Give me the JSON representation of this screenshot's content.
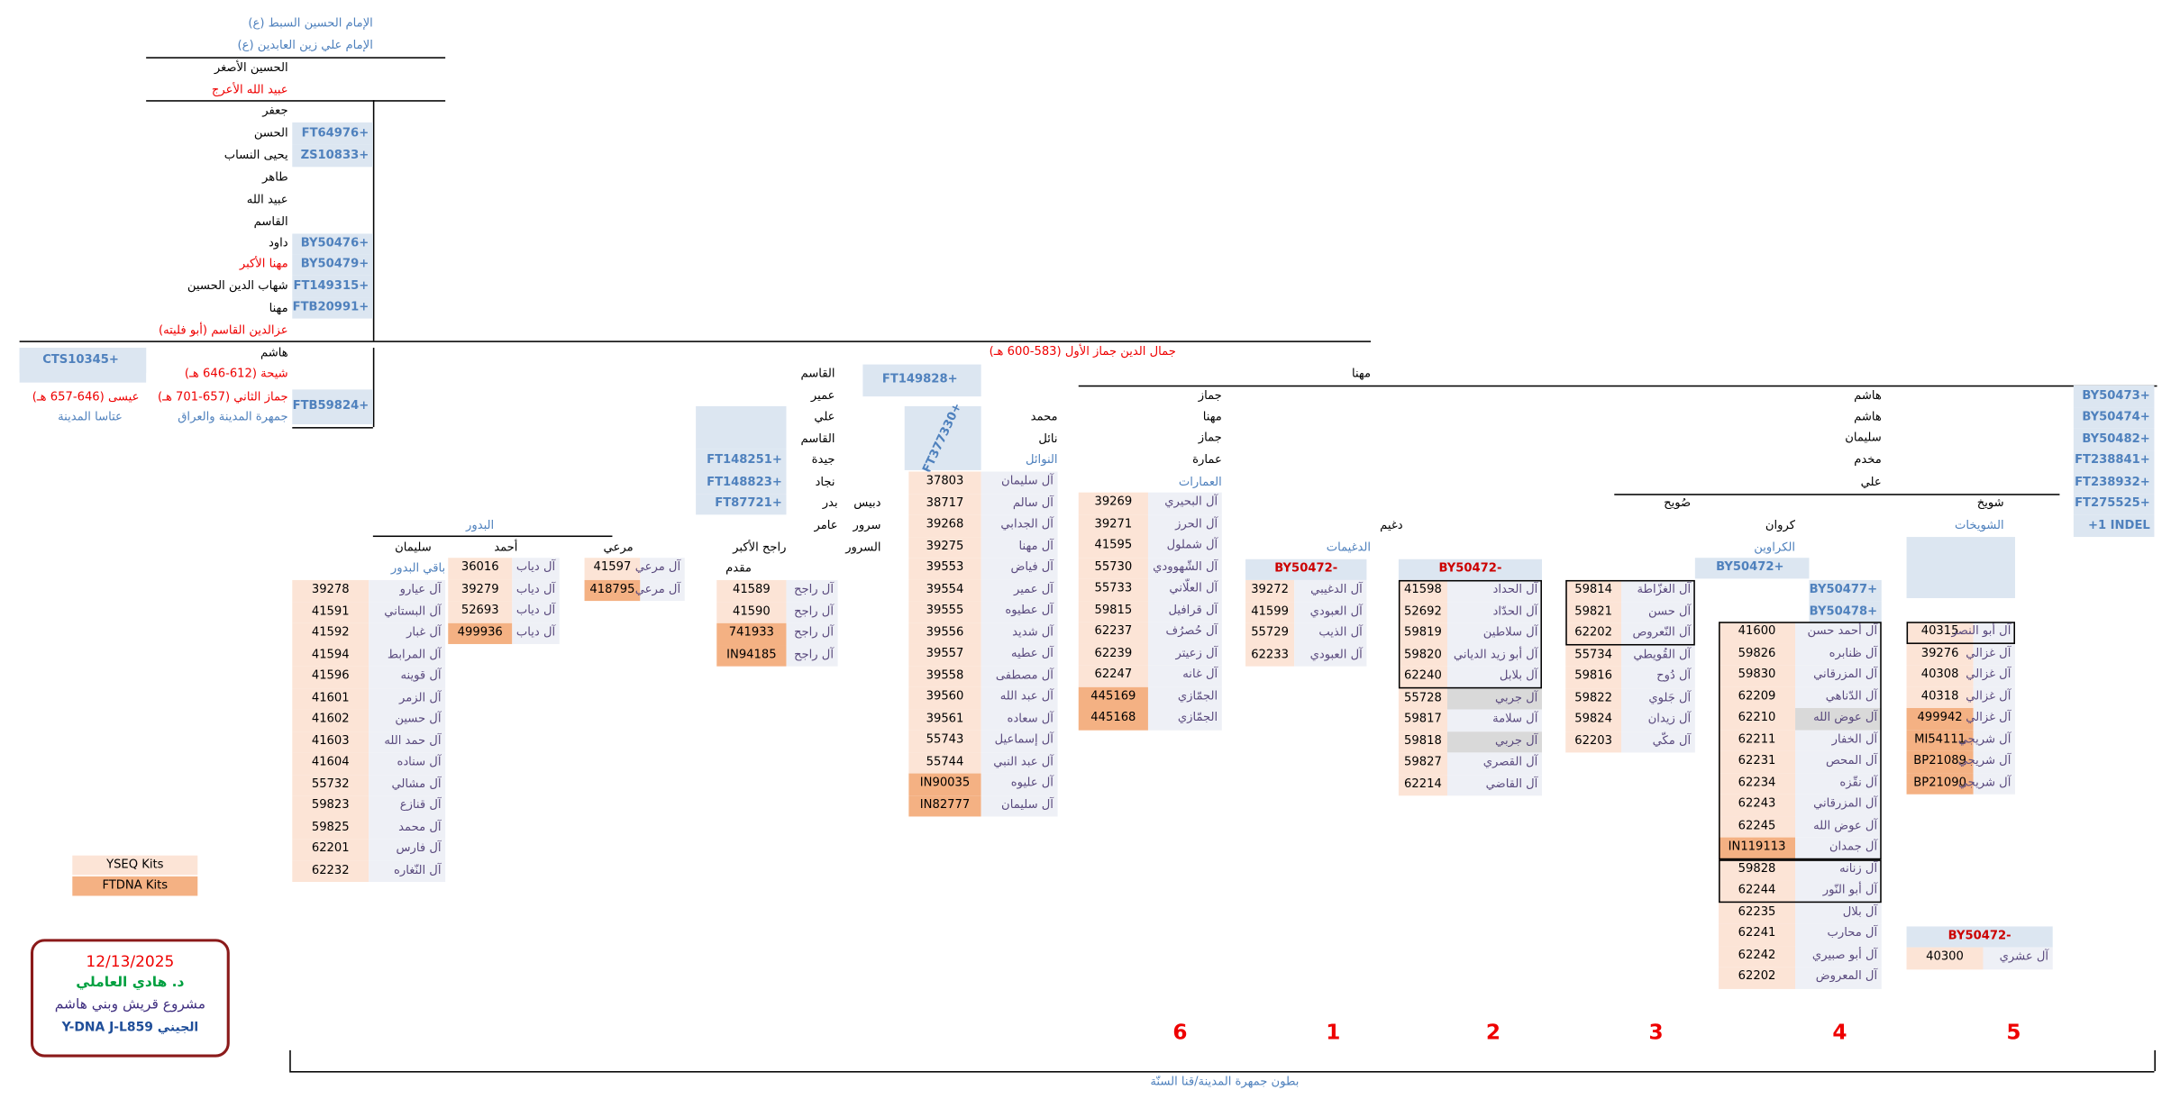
{
  "labels": [
    "الإمام الحسين السبط (ع)",
    "الإمام علي زين العابدين (ع)",
    "الحسين الأصغر",
    "عبيد الله الأعرج",
    "جعفر",
    "الحسن",
    "يحيى النساب",
    "طاهر",
    "عبيد الله",
    "القاسم",
    "داود",
    "مهنا الأكبر",
    "شهاب الدين الحسين",
    "مهنا",
    "عزالدين القاسم (أبو فليته)",
    "هاشم",
    "شيحة (612-646 هـ)",
    "جماز الثاني (657-701 هـ)",
    "جمهرة المدينة والعراق",
    "عيسى (646-657 هـ)",
    "عتاسا المدينة",
    "جمال الدين جماز الأول (583-600 هـ)",
    "القاسم",
    "عمير",
    "مهنا",
    "جماز",
    "مهنا",
    "جماز",
    "عمارة",
    "العمارات",
    "محمد",
    "نائل",
    "النوائل",
    "علي",
    "القاسم",
    "جيدة",
    "نجاد",
    "دبيس",
    "بدر",
    "سرور",
    "عامر",
    "السرور",
    "راجح الأكبر",
    "مقدم",
    "مرعي",
    "البدور",
    "أحمد",
    "سليمان",
    "هاشم",
    "هاشم",
    "سليمان",
    "مخدم",
    "علي",
    "صُويح",
    "شويخ",
    "الشويخات",
    "كروان",
    "الكراوين",
    "دغيم",
    "الدغيمات",
    "بطون جمهرة المدينة/قنا السنّة"
  ],
  "kits": [
    "FT64976+",
    "ZS10833+",
    "BY50476+",
    "BY50479+",
    "FT149315+",
    "FTB20991+",
    "CTS10345+",
    "FTB59824+",
    "FT149828+",
    "FT377330+",
    "FT148251+",
    "FT148823+",
    "FT87721+",
    "BY50473+",
    "BY50474+",
    "BY50482+",
    "FT238841+",
    "FT238932+",
    "FT275525+",
    "+1 INDEL",
    "BY50477+",
    "BY50478+",
    "BY50472+"
  ],
  "tables": [
    {
      "header": "باقي البدور",
      "rows": [
        {
          "kit": "39278",
          "family": "آل عيارو"
        },
        {
          "kit": "41591",
          "family": "آل البستاني"
        },
        {
          "kit": "41592",
          "family": "آل غبار"
        },
        {
          "kit": "41594",
          "family": "آل المرابط"
        },
        {
          "kit": "41596",
          "family": "آل قوينه"
        },
        {
          "kit": "41601",
          "family": "آل الزمر"
        },
        {
          "kit": "41602",
          "family": "آل حسين"
        },
        {
          "kit": "41603",
          "family": "آل حمد الله"
        },
        {
          "kit": "41604",
          "family": "آل سناده"
        },
        {
          "kit": "55732",
          "family": "آل مشالي"
        },
        {
          "kit": "59823",
          "family": "آل قنازع"
        },
        {
          "kit": "59825",
          "family": "آل محمد"
        },
        {
          "kit": "62201",
          "family": "آل فارس"
        },
        {
          "kit": "62232",
          "family": "آل النّغاره"
        }
      ]
    },
    {
      "rows": [
        {
          "kit": "36016",
          "family": "آل دياب"
        },
        {
          "kit": "39279",
          "family": "آل دياب"
        },
        {
          "kit": "52693",
          "family": "آل دياب"
        },
        {
          "kit": "499936",
          "family": "آل دياب",
          "fill": "#f4b183"
        }
      ]
    },
    {
      "rows": [
        {
          "kit": "41597",
          "family": "آل مرعي"
        },
        {
          "kit": "418795",
          "family": "آل مرعي",
          "fill": "#f4b183"
        }
      ]
    },
    {
      "rows": [
        {
          "kit": "41589",
          "family": "آل راجح"
        },
        {
          "kit": "41590",
          "family": "آل راجح"
        },
        {
          "kit": "741933",
          "family": "آل راجح",
          "fill": "#f4b183"
        },
        {
          "kit": "IN94185",
          "family": "آل راجح",
          "fill": "#f4b183"
        }
      ]
    },
    {
      "rows": [
        {
          "kit": "37803",
          "family": "آل سليمان"
        },
        {
          "kit": "38717",
          "family": "آل سالم"
        },
        {
          "kit": "39268",
          "family": "آل الجدابي"
        },
        {
          "kit": "39275",
          "family": "آل مهنا"
        },
        {
          "kit": "39553",
          "family": "آل فياض"
        },
        {
          "kit": "39554",
          "family": "آل عمير"
        },
        {
          "kit": "39555",
          "family": "آل عطيوه"
        },
        {
          "kit": "39556",
          "family": "آل شديد"
        },
        {
          "kit": "39557",
          "family": "آل عطيه"
        },
        {
          "kit": "39558",
          "family": "آل مصطفى"
        },
        {
          "kit": "39560",
          "family": "آل عبد الله"
        },
        {
          "kit": "39561",
          "family": "آل سعاده"
        },
        {
          "kit": "55743",
          "family": "آل إسماعيل"
        },
        {
          "kit": "55744",
          "family": "آل عبد النبي"
        },
        {
          "kit": "IN90035",
          "family": "آل عليوه",
          "fill": "#f4b183"
        },
        {
          "kit": "IN82777",
          "family": "آل سليمان",
          "fill": "#f4b183"
        }
      ]
    },
    {
      "rows": [
        {
          "kit": "39269",
          "family": "آل البحيري"
        },
        {
          "kit": "39271",
          "family": "آل الحرز"
        },
        {
          "kit": "41595",
          "family": "آل شملول"
        },
        {
          "kit": "55730",
          "family": "آل الشّهوودي"
        },
        {
          "kit": "55733",
          "family": "آل العلّاني"
        },
        {
          "kit": "59815",
          "family": "آل قرافيل"
        },
        {
          "kit": "62237",
          "family": "آل حُصرُف"
        },
        {
          "kit": "62239",
          "family": "آل زعيتر"
        },
        {
          "kit": "62247",
          "family": "آل غانه"
        },
        {
          "kit": "445169",
          "family": "الجمّازي",
          "fill": "#f4b183"
        },
        {
          "kit": "445168",
          "family": "الجمّازي",
          "fill": "#f4b183"
        }
      ]
    },
    {
      "header": "BY50472-",
      "rows": [
        {
          "kit": "39272",
          "family": "آل الدغيبي"
        },
        {
          "kit": "41599",
          "family": "آل العبودي"
        },
        {
          "kit": "55729",
          "family": "آل الذيب"
        },
        {
          "kit": "62233",
          "family": "آل العبودي"
        }
      ]
    },
    {
      "header": "BY50472-",
      "rows": [
        {
          "kit": "41598",
          "family": "آل الحداد"
        },
        {
          "kit": "52692",
          "family": "آل الحدّاد"
        },
        {
          "kit": "59819",
          "family": "آل سلاطين"
        },
        {
          "kit": "59820",
          "family": "آل أبو زيد الدياني"
        },
        {
          "kit": "62240",
          "family": "آل بلابل"
        },
        {
          "kit": "55728",
          "family": "آل جربي",
          "family_fill": "#d9d9d9"
        },
        {
          "kit": "59817",
          "family": "آل سلامة"
        },
        {
          "kit": "59818",
          "family": "آل جربي",
          "family_fill": "#d9d9d9"
        },
        {
          "kit": "59827",
          "family": "آل القصري"
        },
        {
          "kit": "62214",
          "family": "آل القاضي"
        }
      ]
    },
    {
      "rows": [
        {
          "kit": "59814",
          "family": "آل الغزّاطة"
        },
        {
          "kit": "59821",
          "family": "آل حسن"
        },
        {
          "kit": "62202",
          "family": "آل النّعروص"
        },
        {
          "kit": "55734",
          "family": "آل القُويطي"
        },
        {
          "kit": "59816",
          "family": "آل دُوح"
        },
        {
          "kit": "59822",
          "family": "آل جَلوي"
        },
        {
          "kit": "59824",
          "family": "آل زيدان"
        },
        {
          "kit": "62203",
          "family": "آل مكّي"
        }
      ]
    },
    {
      "rows": [
        {
          "kit": "41600",
          "family": "آل أحمد حسن"
        },
        {
          "kit": "59826",
          "family": "آل ظنابره"
        },
        {
          "kit": "59830",
          "family": "آل المزرقاني"
        },
        {
          "kit": "62209",
          "family": "آل الدّناهي"
        },
        {
          "kit": "62210",
          "family": "آل عوض الله",
          "family_fill": "#d9d9d9"
        },
        {
          "kit": "62211",
          "family": "آل الخفار"
        },
        {
          "kit": "62231",
          "family": "آل المحص"
        },
        {
          "kit": "62234",
          "family": "آل نقّزه"
        },
        {
          "kit": "62243",
          "family": "آل المزرقاني"
        },
        {
          "kit": "62245",
          "family": "آل عوض الله"
        },
        {
          "kit": "IN119113",
          "family": "آل جمدان",
          "fill": "#f4b183"
        },
        {
          "kit": "59828",
          "family": "آل زنانه"
        },
        {
          "kit": "62244",
          "family": "آل أبو النّور"
        },
        {
          "kit": "62235",
          "family": "آل بلال"
        },
        {
          "kit": "62241",
          "family": "آل محارب"
        },
        {
          "kit": "62242",
          "family": "آل أبو صبيري"
        },
        {
          "kit": "62202",
          "family": "آل المعروض"
        }
      ]
    },
    {
      "rows": [
        {
          "kit": "40315",
          "family": "آل أبو النصر"
        },
        {
          "kit": "39276",
          "family": "آل غزالي"
        },
        {
          "kit": "40308",
          "family": "آل غزالي"
        },
        {
          "kit": "40318",
          "family": "آل غزالي"
        },
        {
          "kit": "499942",
          "family": "آل غزالي",
          "fill": "#f4b183"
        },
        {
          "kit": "MI54111",
          "family": "آل شريجي",
          "fill": "#f4b183"
        },
        {
          "kit": "BP21089",
          "family": "آل شريجي",
          "fill": "#f4b183"
        },
        {
          "kit": "BP21090",
          "family": "آل شريجي",
          "fill": "#f4b183"
        }
      ]
    },
    {
      "header": "BY50472-",
      "rows": [
        {
          "kit": "40300",
          "family": "آل عشري"
        }
      ]
    }
  ],
  "group_numbers": [
    "6",
    "1",
    "2",
    "3",
    "4",
    "5"
  ],
  "legend": [
    "YSEQ Kits",
    "FTDNA Kits"
  ],
  "signature": {
    "date": "12/13/2025",
    "author": "د. هادي العاملي",
    "project": "مشروع قريش وبني هاشم",
    "dna": "Y-DNA J-L859 الجيني"
  }
}
